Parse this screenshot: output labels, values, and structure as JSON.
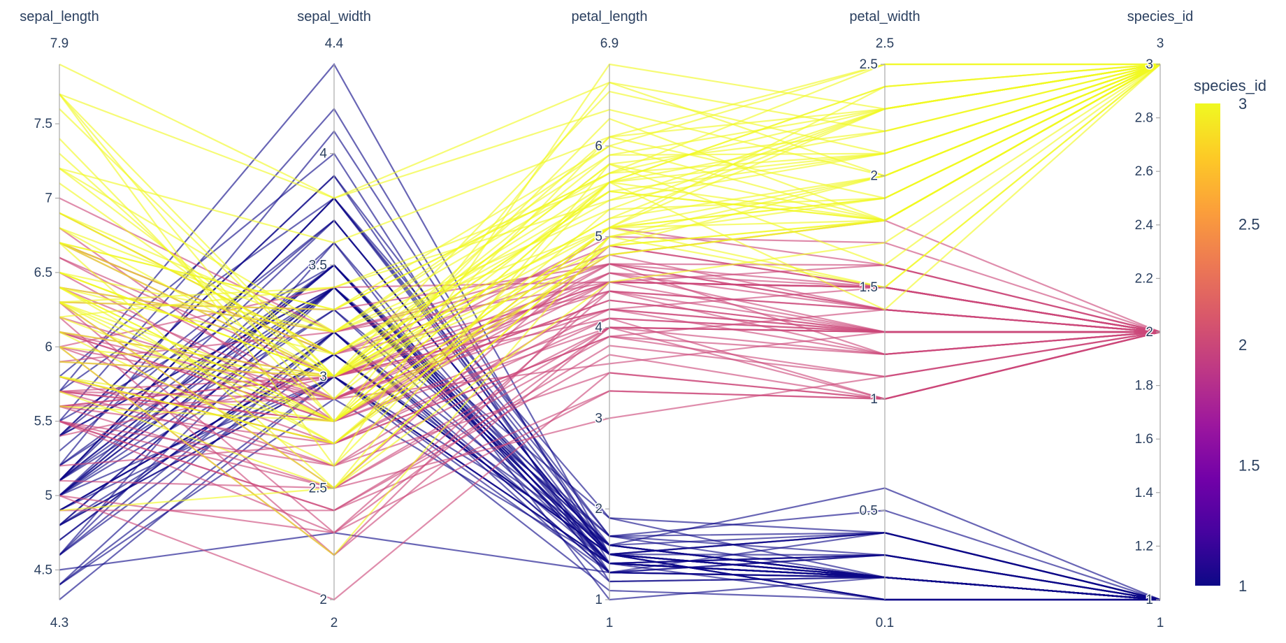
{
  "chart_data": {
    "type": "parallel_coordinates",
    "title": "",
    "color_by": "species_id",
    "colorscale": "Plasma",
    "colors": {
      "plasma": [
        "#0d0887",
        "#46039f",
        "#7201a8",
        "#9c179e",
        "#bd3786",
        "#d8576b",
        "#ed7953",
        "#fb9f3a",
        "#fdca26",
        "#f0f921"
      ],
      "axis": "#a9a9a9",
      "text": "#2a3f5f"
    },
    "colorbar": {
      "title": "species_id",
      "range": [
        1,
        3
      ],
      "ticks": [
        1,
        1.5,
        2,
        2.5,
        3
      ],
      "tick_labels": [
        "1",
        "1.5",
        "2",
        "2.5",
        "3"
      ]
    },
    "dimensions": [
      {
        "label": "sepal_length",
        "range": [
          4.3,
          7.9
        ],
        "range_labels": {
          "min": "4.3",
          "max": "7.9"
        },
        "ticks": [
          4.5,
          5,
          5.5,
          6,
          6.5,
          7,
          7.5
        ],
        "tick_labels": [
          "4.5",
          "5",
          "5.5",
          "6",
          "6.5",
          "7",
          "7.5"
        ]
      },
      {
        "label": "sepal_width",
        "range": [
          2,
          4.4
        ],
        "range_labels": {
          "min": "2",
          "max": "4.4"
        },
        "ticks": [
          2,
          2.5,
          3,
          3.5,
          4
        ],
        "tick_labels": [
          "2",
          "2.5",
          "3",
          "3.5",
          "4"
        ]
      },
      {
        "label": "petal_length",
        "range": [
          1,
          6.9
        ],
        "range_labels": {
          "min": "1",
          "max": "6.9"
        },
        "ticks": [
          1,
          2,
          3,
          4,
          5,
          6
        ],
        "tick_labels": [
          "1",
          "2",
          "3",
          "4",
          "5",
          "6"
        ]
      },
      {
        "label": "petal_width",
        "range": [
          0.1,
          2.5
        ],
        "range_labels": {
          "min": "0.1",
          "max": "2.5"
        },
        "ticks": [
          0.5,
          1,
          1.5,
          2,
          2.5
        ],
        "tick_labels": [
          "0.5",
          "1",
          "1.5",
          "2",
          "2.5"
        ]
      },
      {
        "label": "species_id",
        "range": [
          1,
          3
        ],
        "range_labels": {
          "min": "1",
          "max": "3"
        },
        "ticks": [
          1,
          1.2,
          1.4,
          1.6,
          1.8,
          2,
          2.2,
          2.4,
          2.6,
          2.8,
          3
        ],
        "tick_labels": [
          "1",
          "1.2",
          "1.4",
          "1.6",
          "1.8",
          "2",
          "2.2",
          "2.4",
          "2.6",
          "2.8",
          "3"
        ]
      }
    ],
    "rows": [
      [
        5.1,
        3.5,
        1.4,
        0.2,
        1
      ],
      [
        4.9,
        3.0,
        1.4,
        0.2,
        1
      ],
      [
        4.7,
        3.2,
        1.3,
        0.2,
        1
      ],
      [
        4.6,
        3.1,
        1.5,
        0.2,
        1
      ],
      [
        5.0,
        3.6,
        1.4,
        0.2,
        1
      ],
      [
        5.4,
        3.9,
        1.7,
        0.4,
        1
      ],
      [
        4.6,
        3.4,
        1.4,
        0.3,
        1
      ],
      [
        5.0,
        3.4,
        1.5,
        0.2,
        1
      ],
      [
        4.4,
        2.9,
        1.4,
        0.2,
        1
      ],
      [
        4.9,
        3.1,
        1.5,
        0.1,
        1
      ],
      [
        5.4,
        3.7,
        1.5,
        0.2,
        1
      ],
      [
        4.8,
        3.4,
        1.6,
        0.2,
        1
      ],
      [
        4.8,
        3.0,
        1.4,
        0.1,
        1
      ],
      [
        4.3,
        3.0,
        1.1,
        0.1,
        1
      ],
      [
        5.8,
        4.0,
        1.2,
        0.2,
        1
      ],
      [
        5.7,
        4.4,
        1.5,
        0.4,
        1
      ],
      [
        5.4,
        3.9,
        1.3,
        0.4,
        1
      ],
      [
        5.1,
        3.5,
        1.4,
        0.3,
        1
      ],
      [
        5.7,
        3.8,
        1.7,
        0.3,
        1
      ],
      [
        5.1,
        3.8,
        1.5,
        0.3,
        1
      ],
      [
        5.4,
        3.4,
        1.7,
        0.2,
        1
      ],
      [
        5.1,
        3.7,
        1.5,
        0.4,
        1
      ],
      [
        4.6,
        3.6,
        1.0,
        0.2,
        1
      ],
      [
        5.1,
        3.3,
        1.7,
        0.5,
        1
      ],
      [
        4.8,
        3.4,
        1.9,
        0.2,
        1
      ],
      [
        5.0,
        3.0,
        1.6,
        0.2,
        1
      ],
      [
        5.0,
        3.4,
        1.6,
        0.4,
        1
      ],
      [
        5.2,
        3.5,
        1.5,
        0.2,
        1
      ],
      [
        5.2,
        3.4,
        1.4,
        0.2,
        1
      ],
      [
        4.7,
        3.2,
        1.6,
        0.2,
        1
      ],
      [
        4.8,
        3.1,
        1.6,
        0.2,
        1
      ],
      [
        5.4,
        3.4,
        1.5,
        0.4,
        1
      ],
      [
        5.2,
        4.1,
        1.5,
        0.1,
        1
      ],
      [
        5.5,
        4.2,
        1.4,
        0.2,
        1
      ],
      [
        4.9,
        3.1,
        1.5,
        0.1,
        1
      ],
      [
        5.0,
        3.2,
        1.2,
        0.2,
        1
      ],
      [
        5.5,
        3.5,
        1.3,
        0.2,
        1
      ],
      [
        4.9,
        3.1,
        1.5,
        0.1,
        1
      ],
      [
        4.4,
        3.0,
        1.3,
        0.2,
        1
      ],
      [
        5.1,
        3.4,
        1.5,
        0.2,
        1
      ],
      [
        5.0,
        3.5,
        1.3,
        0.3,
        1
      ],
      [
        4.5,
        2.3,
        1.3,
        0.3,
        1
      ],
      [
        4.4,
        3.2,
        1.3,
        0.2,
        1
      ],
      [
        5.0,
        3.5,
        1.6,
        0.6,
        1
      ],
      [
        5.1,
        3.8,
        1.9,
        0.4,
        1
      ],
      [
        4.8,
        3.0,
        1.4,
        0.3,
        1
      ],
      [
        5.1,
        3.8,
        1.6,
        0.2,
        1
      ],
      [
        4.6,
        3.2,
        1.4,
        0.2,
        1
      ],
      [
        5.3,
        3.7,
        1.5,
        0.2,
        1
      ],
      [
        5.0,
        3.3,
        1.4,
        0.2,
        1
      ],
      [
        7.0,
        3.2,
        4.7,
        1.4,
        2
      ],
      [
        6.4,
        3.2,
        4.5,
        1.5,
        2
      ],
      [
        6.9,
        3.1,
        4.9,
        1.5,
        2
      ],
      [
        5.5,
        2.3,
        4.0,
        1.3,
        2
      ],
      [
        6.5,
        2.8,
        4.6,
        1.5,
        2
      ],
      [
        5.7,
        2.8,
        4.5,
        1.3,
        2
      ],
      [
        6.3,
        3.3,
        4.7,
        1.6,
        2
      ],
      [
        4.9,
        2.4,
        3.3,
        1.0,
        2
      ],
      [
        6.6,
        2.9,
        4.6,
        1.3,
        2
      ],
      [
        5.2,
        2.7,
        3.9,
        1.4,
        2
      ],
      [
        5.0,
        2.0,
        3.5,
        1.0,
        2
      ],
      [
        5.9,
        3.0,
        4.2,
        1.5,
        2
      ],
      [
        6.0,
        2.2,
        4.0,
        1.0,
        2
      ],
      [
        6.1,
        2.9,
        4.7,
        1.4,
        2
      ],
      [
        5.6,
        2.9,
        3.6,
        1.3,
        2
      ],
      [
        6.7,
        3.1,
        4.4,
        1.4,
        2
      ],
      [
        5.6,
        3.0,
        4.5,
        1.5,
        2
      ],
      [
        5.8,
        2.7,
        4.1,
        1.0,
        2
      ],
      [
        6.2,
        2.2,
        4.5,
        1.5,
        2
      ],
      [
        5.6,
        2.5,
        3.9,
        1.1,
        2
      ],
      [
        5.9,
        3.2,
        4.8,
        1.8,
        2
      ],
      [
        6.1,
        2.8,
        4.0,
        1.3,
        2
      ],
      [
        6.3,
        2.5,
        4.9,
        1.5,
        2
      ],
      [
        6.1,
        2.8,
        4.7,
        1.2,
        2
      ],
      [
        6.4,
        2.9,
        4.3,
        1.3,
        2
      ],
      [
        6.6,
        3.0,
        4.4,
        1.4,
        2
      ],
      [
        6.8,
        2.8,
        4.8,
        1.4,
        2
      ],
      [
        6.7,
        3.0,
        5.0,
        1.7,
        2
      ],
      [
        6.0,
        2.9,
        4.5,
        1.5,
        2
      ],
      [
        5.7,
        2.6,
        3.5,
        1.0,
        2
      ],
      [
        5.5,
        2.4,
        3.8,
        1.1,
        2
      ],
      [
        5.5,
        2.4,
        3.7,
        1.0,
        2
      ],
      [
        5.8,
        2.7,
        3.9,
        1.2,
        2
      ],
      [
        6.0,
        2.7,
        5.1,
        1.6,
        2
      ],
      [
        5.4,
        3.0,
        4.5,
        1.5,
        2
      ],
      [
        6.0,
        3.4,
        4.5,
        1.6,
        2
      ],
      [
        6.7,
        3.1,
        4.7,
        1.5,
        2
      ],
      [
        6.3,
        2.3,
        4.4,
        1.3,
        2
      ],
      [
        5.6,
        3.0,
        4.1,
        1.3,
        2
      ],
      [
        5.5,
        2.5,
        4.0,
        1.3,
        2
      ],
      [
        5.5,
        2.6,
        4.4,
        1.2,
        2
      ],
      [
        6.1,
        3.0,
        4.6,
        1.4,
        2
      ],
      [
        5.8,
        2.6,
        4.0,
        1.2,
        2
      ],
      [
        5.0,
        2.3,
        3.3,
        1.0,
        2
      ],
      [
        5.6,
        2.7,
        4.2,
        1.3,
        2
      ],
      [
        5.7,
        3.0,
        4.2,
        1.2,
        2
      ],
      [
        5.7,
        2.9,
        4.2,
        1.3,
        2
      ],
      [
        6.2,
        2.9,
        4.3,
        1.3,
        2
      ],
      [
        5.1,
        2.5,
        3.0,
        1.1,
        2
      ],
      [
        5.7,
        2.8,
        4.1,
        1.3,
        2
      ],
      [
        6.3,
        3.3,
        6.0,
        2.5,
        3
      ],
      [
        5.8,
        2.7,
        5.1,
        1.9,
        3
      ],
      [
        7.1,
        3.0,
        5.9,
        2.1,
        3
      ],
      [
        6.3,
        2.9,
        5.6,
        1.8,
        3
      ],
      [
        6.5,
        3.0,
        5.8,
        2.2,
        3
      ],
      [
        7.6,
        3.0,
        6.6,
        2.1,
        3
      ],
      [
        4.9,
        2.5,
        4.5,
        1.7,
        3
      ],
      [
        7.3,
        2.9,
        6.3,
        1.8,
        3
      ],
      [
        6.7,
        2.5,
        5.8,
        1.8,
        3
      ],
      [
        7.2,
        3.6,
        6.1,
        2.5,
        3
      ],
      [
        6.5,
        3.2,
        5.1,
        2.0,
        3
      ],
      [
        6.4,
        2.7,
        5.3,
        1.9,
        3
      ],
      [
        6.8,
        3.0,
        5.5,
        2.1,
        3
      ],
      [
        5.7,
        2.5,
        5.0,
        2.0,
        3
      ],
      [
        5.8,
        2.8,
        5.1,
        2.4,
        3
      ],
      [
        6.4,
        3.2,
        5.3,
        2.3,
        3
      ],
      [
        6.5,
        3.0,
        5.5,
        1.8,
        3
      ],
      [
        7.7,
        3.8,
        6.7,
        2.2,
        3
      ],
      [
        7.7,
        2.6,
        6.9,
        2.3,
        3
      ],
      [
        6.0,
        2.2,
        5.0,
        1.5,
        3
      ],
      [
        6.9,
        3.2,
        5.7,
        2.3,
        3
      ],
      [
        5.6,
        2.8,
        4.9,
        2.0,
        3
      ],
      [
        7.7,
        2.8,
        6.7,
        2.0,
        3
      ],
      [
        6.3,
        2.7,
        4.9,
        1.8,
        3
      ],
      [
        6.7,
        3.3,
        5.7,
        2.1,
        3
      ],
      [
        7.2,
        3.2,
        6.0,
        1.8,
        3
      ],
      [
        6.2,
        2.8,
        4.8,
        1.8,
        3
      ],
      [
        6.1,
        3.0,
        4.9,
        1.8,
        3
      ],
      [
        6.4,
        2.8,
        5.6,
        2.1,
        3
      ],
      [
        7.2,
        3.0,
        5.8,
        1.6,
        3
      ],
      [
        7.4,
        2.8,
        6.1,
        1.9,
        3
      ],
      [
        7.9,
        3.8,
        6.4,
        2.0,
        3
      ],
      [
        6.4,
        2.8,
        5.6,
        2.2,
        3
      ],
      [
        6.3,
        2.8,
        5.1,
        1.5,
        3
      ],
      [
        6.1,
        2.6,
        5.6,
        1.4,
        3
      ],
      [
        7.7,
        3.0,
        6.1,
        2.3,
        3
      ],
      [
        6.3,
        3.4,
        5.6,
        2.4,
        3
      ],
      [
        6.4,
        3.1,
        5.5,
        1.8,
        3
      ],
      [
        6.0,
        3.0,
        4.8,
        1.8,
        3
      ],
      [
        6.9,
        3.1,
        5.4,
        2.1,
        3
      ],
      [
        6.7,
        3.1,
        5.6,
        2.4,
        3
      ],
      [
        6.9,
        3.1,
        5.1,
        2.3,
        3
      ],
      [
        5.8,
        2.7,
        5.1,
        1.9,
        3
      ],
      [
        6.8,
        3.2,
        5.9,
        2.3,
        3
      ],
      [
        6.7,
        3.3,
        5.7,
        2.5,
        3
      ],
      [
        6.7,
        3.0,
        5.2,
        2.3,
        3
      ],
      [
        6.3,
        2.5,
        5.0,
        1.9,
        3
      ],
      [
        6.5,
        3.0,
        5.2,
        2.0,
        3
      ],
      [
        6.2,
        3.4,
        5.4,
        2.3,
        3
      ],
      [
        5.9,
        3.0,
        5.1,
        1.8,
        3
      ]
    ]
  }
}
